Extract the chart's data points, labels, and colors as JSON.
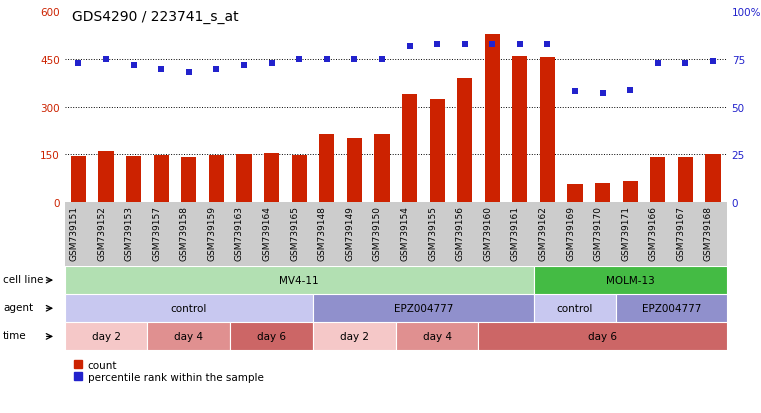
{
  "title": "GDS4290 / 223741_s_at",
  "samples": [
    "GSM739151",
    "GSM739152",
    "GSM739153",
    "GSM739157",
    "GSM739158",
    "GSM739159",
    "GSM739163",
    "GSM739164",
    "GSM739165",
    "GSM739148",
    "GSM739149",
    "GSM739150",
    "GSM739154",
    "GSM739155",
    "GSM739156",
    "GSM739160",
    "GSM739161",
    "GSM739162",
    "GSM739169",
    "GSM739170",
    "GSM739171",
    "GSM739166",
    "GSM739167",
    "GSM739168"
  ],
  "counts": [
    145,
    160,
    145,
    148,
    140,
    148,
    150,
    155,
    148,
    215,
    200,
    215,
    340,
    325,
    390,
    530,
    460,
    455,
    55,
    60,
    65,
    140,
    140,
    150
  ],
  "percentile": [
    73,
    75,
    72,
    70,
    68,
    70,
    72,
    73,
    75,
    75,
    75,
    75,
    82,
    83,
    83,
    83,
    83,
    83,
    58,
    57,
    59,
    73,
    73,
    74
  ],
  "ylim_left": [
    0,
    600
  ],
  "ylim_right": [
    0,
    100
  ],
  "yticks_left": [
    0,
    150,
    300,
    450,
    600
  ],
  "yticks_right": [
    0,
    25,
    50,
    75,
    100
  ],
  "bar_color": "#cc2200",
  "dot_color": "#2222cc",
  "grid_lines": [
    150,
    300,
    450
  ],
  "cell_line_segments": [
    {
      "text": "MV4-11",
      "start": 0,
      "end": 17,
      "color": "#b2e0b2"
    },
    {
      "text": "MOLM-13",
      "start": 17,
      "end": 24,
      "color": "#44bb44"
    }
  ],
  "agent_segments": [
    {
      "text": "control",
      "start": 0,
      "end": 9,
      "color": "#c8c8f0"
    },
    {
      "text": "EPZ004777",
      "start": 9,
      "end": 17,
      "color": "#9090cc"
    },
    {
      "text": "control",
      "start": 17,
      "end": 20,
      "color": "#c8c8f0"
    },
    {
      "text": "EPZ004777",
      "start": 20,
      "end": 24,
      "color": "#9090cc"
    }
  ],
  "time_segments": [
    {
      "text": "day 2",
      "start": 0,
      "end": 3,
      "color": "#f5c8c8"
    },
    {
      "text": "day 4",
      "start": 3,
      "end": 6,
      "color": "#e09090"
    },
    {
      "text": "day 6",
      "start": 6,
      "end": 9,
      "color": "#cc6666"
    },
    {
      "text": "day 2",
      "start": 9,
      "end": 12,
      "color": "#f5c8c8"
    },
    {
      "text": "day 4",
      "start": 12,
      "end": 15,
      "color": "#e09090"
    },
    {
      "text": "day 6",
      "start": 15,
      "end": 24,
      "color": "#cc6666"
    }
  ],
  "background_color": "#ffffff",
  "tick_bg_color": "#cccccc",
  "tick_label_fontsize": 6.5,
  "title_fontsize": 10,
  "axis_label_color_left": "#cc2200",
  "axis_label_color_right": "#2222cc",
  "n_samples": 24,
  "row_label_fontsize": 7.5,
  "row_content_fontsize": 7.5,
  "legend_fontsize": 7.5
}
